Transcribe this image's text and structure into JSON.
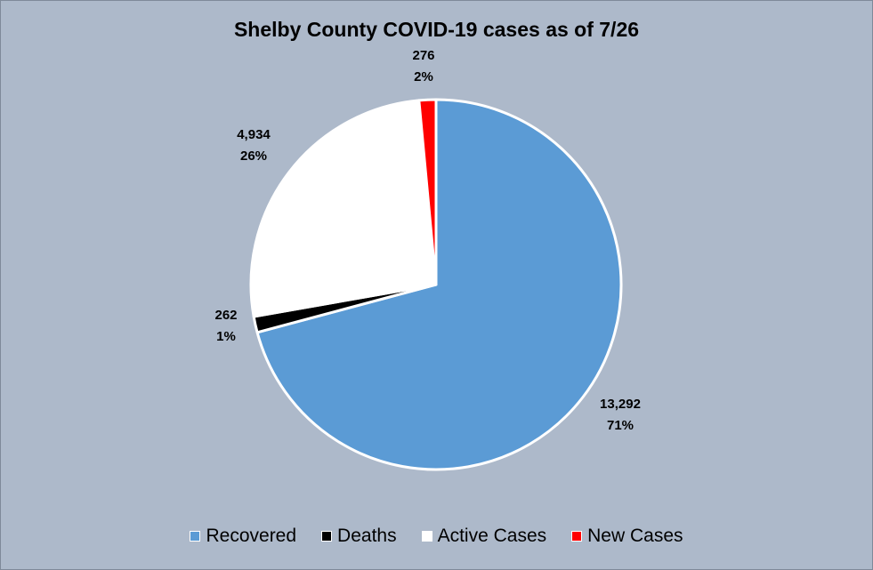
{
  "chart_data": {
    "type": "pie",
    "title": "Shelby County COVID-19 cases as of 7/26",
    "slices": [
      {
        "name": "Recovered",
        "value": 13292,
        "value_label": "13,292",
        "percent_label": "71%",
        "color": "#5b9bd5"
      },
      {
        "name": "Deaths",
        "value": 262,
        "value_label": "262",
        "percent_label": "1%",
        "color": "#000000"
      },
      {
        "name": "Active Cases",
        "value": 4934,
        "value_label": "4,934",
        "percent_label": "26%",
        "color": "#ffffff"
      },
      {
        "name": "New Cases",
        "value": 276,
        "value_label": "276",
        "percent_label": "2%",
        "color": "#ff0000"
      }
    ],
    "legend_position": "bottom"
  }
}
